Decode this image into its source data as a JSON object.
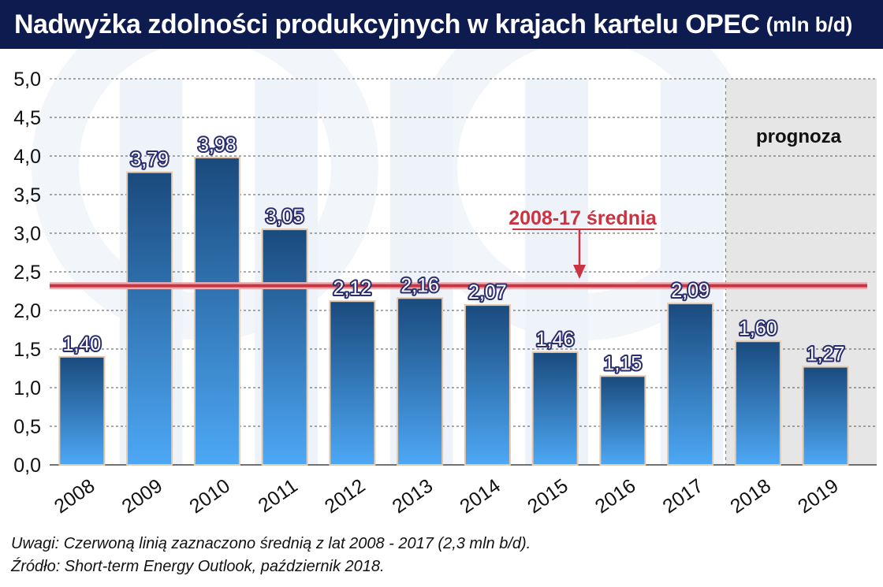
{
  "title": "Nadwyżka zdolności produkcyjnych w krajach kartelu OPEC",
  "title_unit": "(mln b/d)",
  "notes": [
    "Uwagi: Czerwoną linią zaznaczono średnią z lat 2008 - 2017 (2,3 mln b/d).",
    "Źródło: Short-term Energy Outlook, październik 2018."
  ],
  "chart_data": {
    "type": "bar",
    "categories": [
      "2008",
      "2009",
      "2010",
      "2011",
      "2012",
      "2013",
      "2014",
      "2015",
      "2016",
      "2017",
      "2018",
      "2019"
    ],
    "values": [
      1.4,
      3.79,
      3.98,
      3.05,
      2.12,
      2.16,
      2.07,
      1.46,
      1.15,
      2.09,
      1.6,
      1.27
    ],
    "value_labels": [
      "1,40",
      "3,79",
      "3,98",
      "3,05",
      "2,12",
      "2,16",
      "2,07",
      "1,46",
      "1,15",
      "2,09",
      "1,60",
      "1,27"
    ],
    "yticks": [
      0,
      0.5,
      1.0,
      1.5,
      2.0,
      2.5,
      3.0,
      3.5,
      4.0,
      4.5,
      5.0
    ],
    "ytick_labels": [
      "0,0",
      "0,5",
      "1,0",
      "1,5",
      "2,0",
      "2,5",
      "3,0",
      "3,5",
      "4,0",
      "4,5",
      "5,0"
    ],
    "ylim": [
      0,
      5
    ],
    "grid": true,
    "average": {
      "value": 2.32,
      "label": "2008-17 średnia",
      "color": "#cc3340"
    },
    "forecast": {
      "label": "prognoza",
      "categories": [
        "2018",
        "2019"
      ]
    },
    "colors": {
      "bar_top": "#1a4a7d",
      "bar_bottom": "#4da8f5",
      "bar_outline": "#e8c8a8",
      "forecast_bg": "#e6e6e6",
      "label_text": "#ffffff",
      "label_outline": "#2b2e6e"
    }
  }
}
